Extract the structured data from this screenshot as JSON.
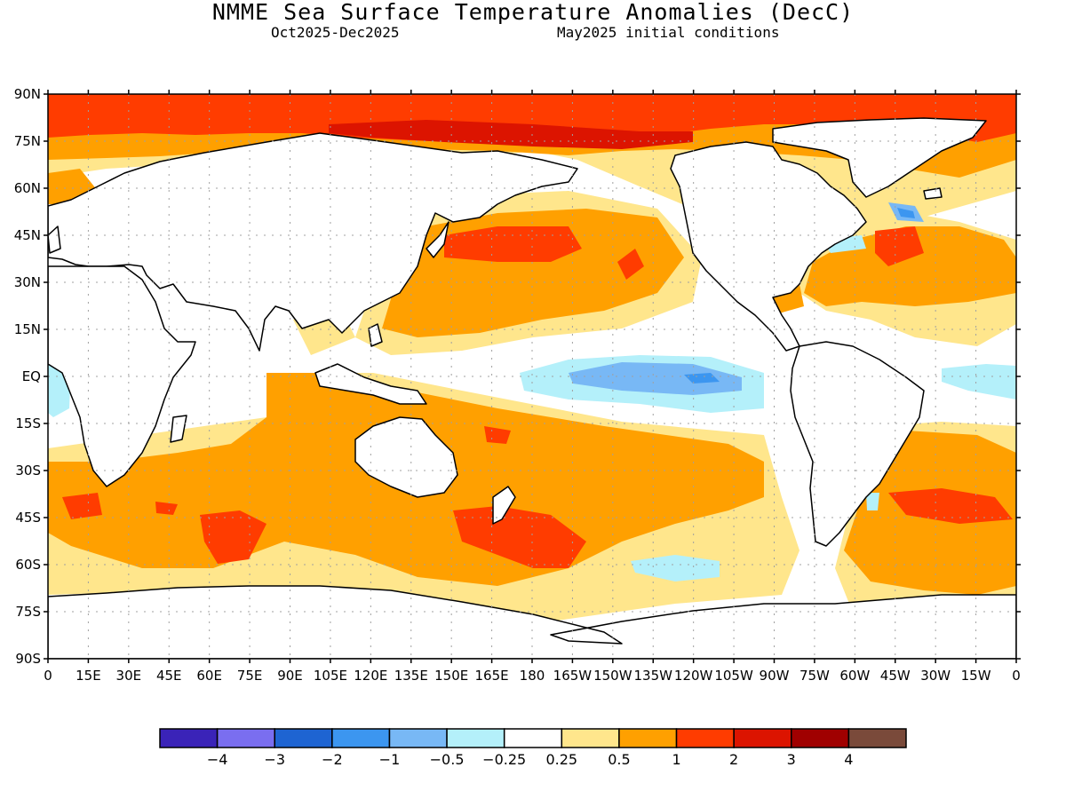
{
  "header": {
    "title": "NMME Sea Surface Temperature Anomalies (DecC)",
    "period": "Oct2025-Dec2025",
    "init": "May2025 initial conditions"
  },
  "axes": {
    "lat_labels": [
      "90N",
      "75N",
      "60N",
      "45N",
      "30N",
      "15N",
      "EQ",
      "15S",
      "30S",
      "45S",
      "60S",
      "75S",
      "90S"
    ],
    "lon_labels": [
      "0",
      "15E",
      "30E",
      "45E",
      "60E",
      "75E",
      "90E",
      "105E",
      "120E",
      "135E",
      "150E",
      "165E",
      "180",
      "165W",
      "150W",
      "135W",
      "120W",
      "105W",
      "90W",
      "75W",
      "60W",
      "45W",
      "30W",
      "15W",
      "0"
    ],
    "grid": true
  },
  "colorbar": {
    "colors": [
      "#3a23b8",
      "#7a6ef0",
      "#1e64d2",
      "#3c96f0",
      "#78b8f5",
      "#b4f0fa",
      "#ffffff",
      "#ffe68c",
      "#ffa000",
      "#ff3c00",
      "#dc1400",
      "#a00000",
      "#7a4a3a"
    ],
    "labels": [
      "-4",
      "-3",
      "-2",
      "-1",
      "-0.5",
      "-0.25",
      "0.25",
      "0.5",
      "1",
      "2",
      "3",
      "4"
    ]
  },
  "palette": {
    "land": "#ffffff",
    "coast": "#000000",
    "neutral": "#ffffff",
    "weak_warm": "#ffe68c",
    "warm": "#ffa000",
    "strong_warm": "#ff3c00",
    "very_warm": "#dc1400",
    "weak_cool": "#b4f0fa",
    "cool": "#78b8f5",
    "moderate_cool": "#3c96f0"
  }
}
